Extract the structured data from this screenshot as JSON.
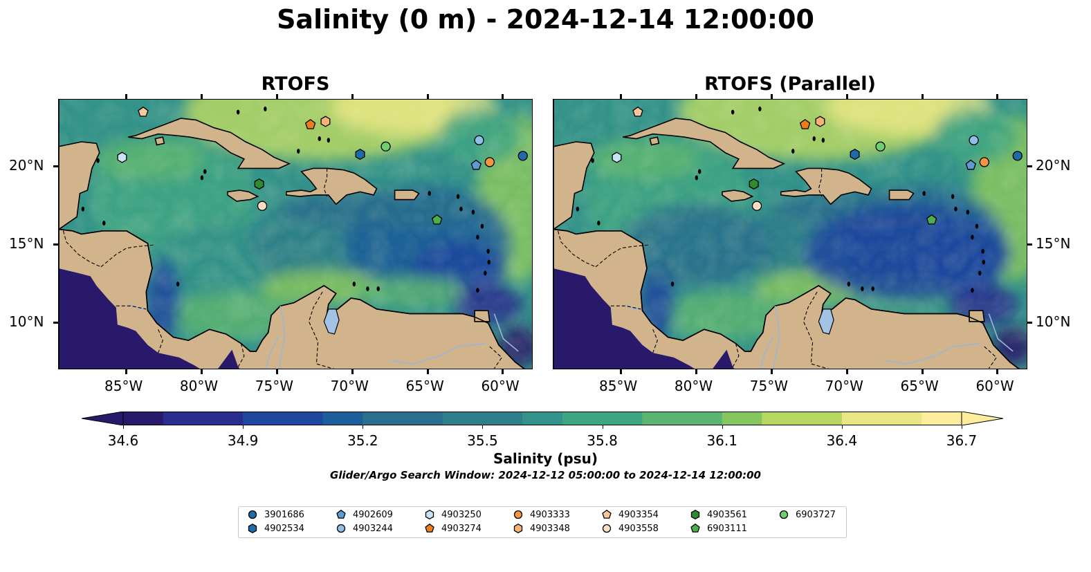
{
  "title": "Salinity (0 m) - 2024-12-14 12:00:00",
  "panels": [
    {
      "title": "RTOFS"
    },
    {
      "title": "RTOFS (Parallel)"
    }
  ],
  "map": {
    "lon_range": [
      -89.5,
      -58.0
    ],
    "lat_range": [
      7.0,
      24.3
    ],
    "lon_ticks": [
      "85°W",
      "80°W",
      "75°W",
      "70°W",
      "65°W",
      "60°W"
    ],
    "lat_ticks": [
      "20°N",
      "15°N",
      "10°N"
    ],
    "land_color": "#d2b48c",
    "lake_color": "#a4c2e6",
    "border_style": "dashed"
  },
  "colorbar": {
    "label": "Salinity (psu)",
    "ticks": [
      "34.6",
      "34.9",
      "35.2",
      "35.5",
      "35.8",
      "36.1",
      "36.4",
      "36.7"
    ],
    "range": [
      34.6,
      36.7
    ],
    "colormap_stops": [
      "#28196a",
      "#2b2d8e",
      "#1f479f",
      "#1c5e9a",
      "#2a6f8e",
      "#2f7f8a",
      "#33928a",
      "#3ea583",
      "#5ab472",
      "#86c65e",
      "#b6d760",
      "#e9e685",
      "#fbed9b"
    ]
  },
  "search_window": "Glider/Argo Search Window: 2024-12-12 05:00:00 to 2024-12-14 12:00:00",
  "legend": [
    {
      "label": "3901686",
      "marker": "circle",
      "color": "#1f6aa8"
    },
    {
      "label": "4902534",
      "marker": "hexagon",
      "color": "#1f6aa8"
    },
    {
      "label": "4902609",
      "marker": "pentagon",
      "color": "#5d9bd3"
    },
    {
      "label": "4903244",
      "marker": "circle",
      "color": "#8fbfe6"
    },
    {
      "label": "4903250",
      "marker": "hexagon",
      "color": "#c9e3f6"
    },
    {
      "label": "4903274",
      "marker": "pentagon",
      "color": "#ef7c1a"
    },
    {
      "label": "4903333",
      "marker": "circle",
      "color": "#f3963f"
    },
    {
      "label": "4903348",
      "marker": "hexagon",
      "color": "#f8b274"
    },
    {
      "label": "4903354",
      "marker": "pentagon",
      "color": "#fbc79a"
    },
    {
      "label": "4903558",
      "marker": "circle",
      "color": "#fde0c4"
    },
    {
      "label": "4903561",
      "marker": "hexagon",
      "color": "#2e8b2e"
    },
    {
      "label": "6903111",
      "marker": "pentagon",
      "color": "#4caf4c"
    },
    {
      "label": "6903727",
      "marker": "circle",
      "color": "#6fcf6f"
    }
  ],
  "floats": [
    {
      "id": "3901686",
      "lon": -58.7,
      "lat": 20.7
    },
    {
      "id": "4902534",
      "lon": -69.5,
      "lat": 20.8
    },
    {
      "id": "4902609",
      "lon": -61.8,
      "lat": 20.1
    },
    {
      "id": "4903244",
      "lon": -61.6,
      "lat": 21.7
    },
    {
      "id": "4903250",
      "lon": -85.3,
      "lat": 20.6
    },
    {
      "id": "4903274",
      "lon": -72.8,
      "lat": 22.7
    },
    {
      "id": "4903333",
      "lon": -60.9,
      "lat": 20.3
    },
    {
      "id": "4903348",
      "lon": -71.8,
      "lat": 22.9
    },
    {
      "id": "4903354",
      "lon": -83.9,
      "lat": 23.5
    },
    {
      "id": "4903558",
      "lon": -76.0,
      "lat": 17.5
    },
    {
      "id": "4903561",
      "lon": -76.2,
      "lat": 18.9
    },
    {
      "id": "6903111",
      "lon": -64.4,
      "lat": 16.6
    },
    {
      "id": "6903727",
      "lon": -67.8,
      "lat": 21.3
    }
  ]
}
